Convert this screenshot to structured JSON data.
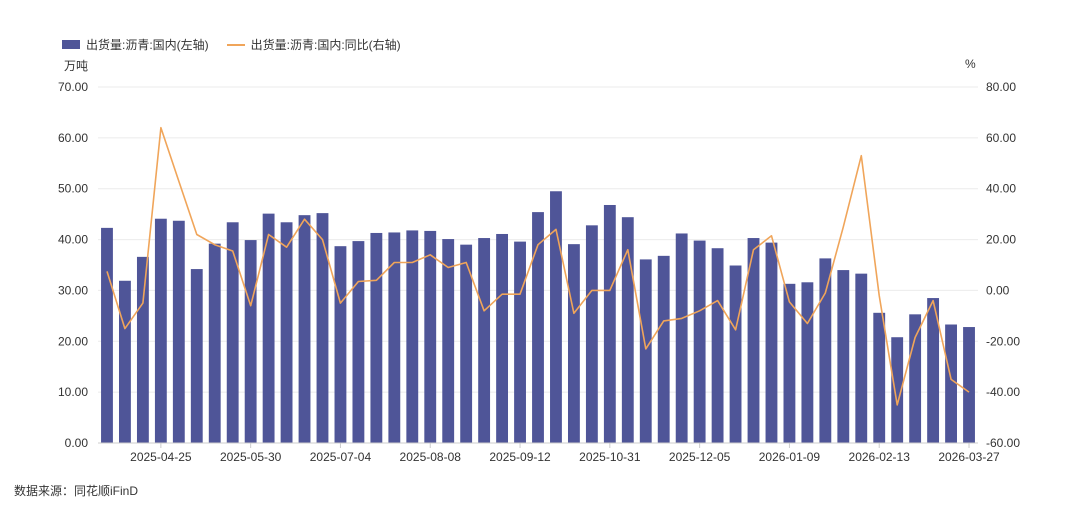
{
  "legend": {
    "bar_label": "出货量:沥青:国内(左轴)",
    "line_label": "出货量:沥青:国内:同比(右轴)"
  },
  "units": {
    "left": "万吨",
    "right": "%"
  },
  "source": "数据来源：同花顺iFinD",
  "colors": {
    "bar": "#4f5598",
    "line": "#f0a55a",
    "grid": "#ebebeb",
    "axis_text": "#333333"
  },
  "chart_data": {
    "type": "bar+line",
    "x_tick_labels": [
      "2025-04-25",
      "2025-05-30",
      "2025-07-04",
      "2025-08-08",
      "2025-09-12",
      "2025-10-31",
      "2025-12-05",
      "2026-01-09",
      "2026-02-13",
      "2026-03-27"
    ],
    "x_tick_indices": [
      3,
      8,
      13,
      18,
      23,
      28,
      33,
      38,
      43,
      48
    ],
    "y_left": {
      "min": 0,
      "max": 70,
      "step": 10,
      "tick_labels": [
        "0.00",
        "10.00",
        "20.00",
        "30.00",
        "40.00",
        "50.00",
        "60.00",
        "70.00"
      ]
    },
    "y_right": {
      "min": -60,
      "max": 80,
      "step": 20,
      "tick_labels": [
        "-60.00",
        "-40.00",
        "-20.00",
        "0.00",
        "20.00",
        "40.00",
        "60.00",
        "80.00"
      ]
    },
    "series": [
      {
        "name": "出货量:沥青:国内(左轴)",
        "type": "bar",
        "axis": "left",
        "values": [
          42.3,
          31.9,
          36.6,
          44.1,
          43.7,
          34.2,
          39.2,
          43.4,
          39.9,
          45.1,
          43.4,
          44.8,
          45.2,
          38.7,
          39.7,
          41.3,
          41.4,
          41.8,
          41.7,
          40.1,
          39.0,
          40.3,
          41.1,
          39.6,
          45.4,
          49.5,
          39.1,
          42.8,
          46.8,
          44.4,
          36.1,
          36.8,
          41.2,
          39.8,
          38.3,
          34.9,
          40.3,
          39.4,
          31.3,
          31.6,
          36.3,
          34.0,
          33.3,
          25.6,
          20.8,
          25.3,
          28.5,
          23.3,
          22.8
        ]
      },
      {
        "name": "出货量:沥青:国内:同比(右轴)",
        "type": "line",
        "axis": "right",
        "values": [
          7.5,
          -15.0,
          -5.0,
          64.0,
          43.0,
          22.0,
          18.0,
          15.5,
          -6.0,
          22.0,
          17.0,
          28.0,
          20.0,
          -5.0,
          3.5,
          4.0,
          11.0,
          11.0,
          14.0,
          9.0,
          11.0,
          -8.0,
          -1.5,
          -1.5,
          18.0,
          24.0,
          -9.0,
          0.0,
          0.0,
          16.0,
          -23.0,
          -12.0,
          -11.0,
          -8.0,
          -4.0,
          -15.5,
          16.0,
          21.5,
          -4.5,
          -13.0,
          -1.0,
          25.0,
          53.0,
          -2.0,
          -45.0,
          -18.5,
          -4.0,
          -35.0,
          -40.0
        ]
      }
    ]
  }
}
